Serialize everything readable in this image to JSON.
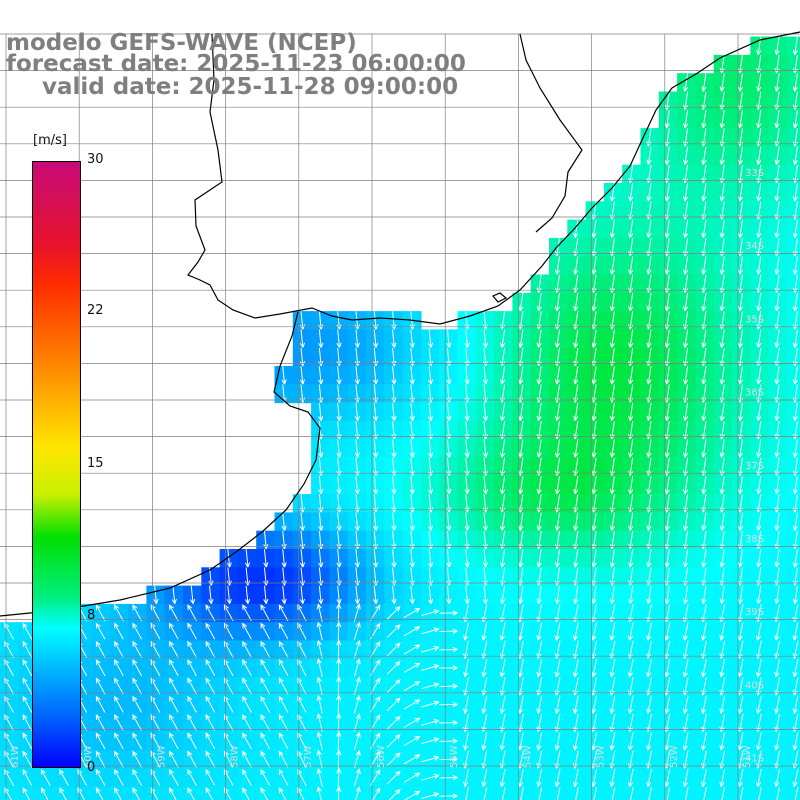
{
  "title": {
    "line1": "modelo GEFS-WAVE (NCEP)",
    "line2": "forecast date: 2025-11-23 06:00:00",
    "line3": "valid date: 2025-11-28 09:00:00"
  },
  "colorbar": {
    "unit": "[m/s]",
    "ticks": [
      "30",
      "22",
      "15",
      "8",
      "0"
    ],
    "tick_values": [
      30,
      22,
      15,
      8,
      0
    ],
    "range": [
      0,
      30
    ]
  },
  "map": {
    "lat_labels": [
      "33S",
      "34S",
      "35S",
      "36S",
      "37S",
      "38S",
      "39S",
      "40S",
      "41S"
    ],
    "lon_labels": [
      "61W",
      "60W",
      "59W",
      "58W",
      "57W",
      "56W",
      "55W",
      "54W",
      "53W",
      "52W",
      "51W"
    ],
    "colors": {
      "land": "#ffffff",
      "coastline": "#000000",
      "grid": "#7f7f7f",
      "arrow": "#ffffff",
      "label": "#dddddd"
    }
  }
}
